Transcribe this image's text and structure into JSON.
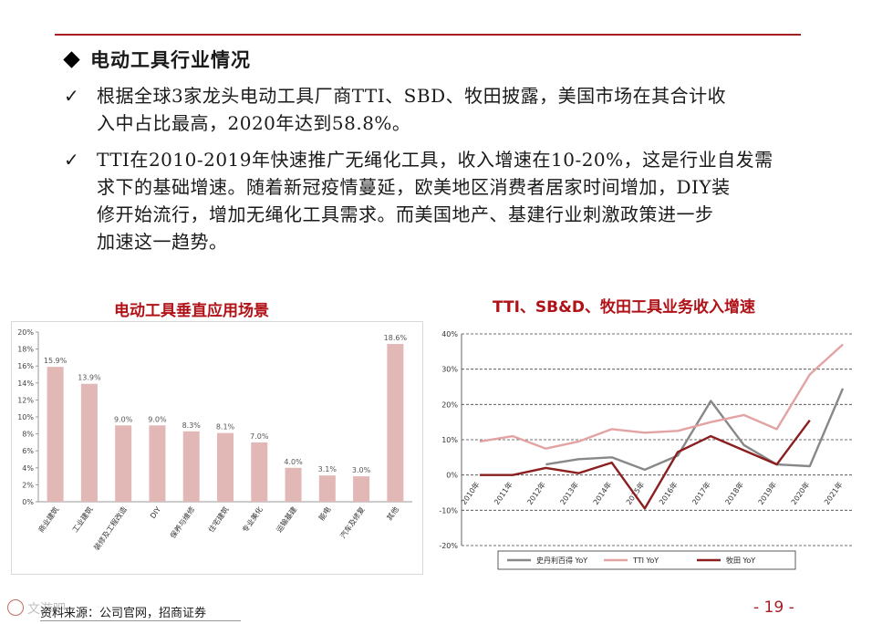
{
  "heading": "电动工具行业情况",
  "bullets": [
    {
      "check": "✓",
      "lines": [
        "根据全球3家龙头电动工具厂商TTI、SBD、牧田披露，美国市场在其合计收",
        "入中占比最高，2020年达到58.8%。"
      ]
    },
    {
      "check": "✓",
      "lines": [
        "TTI在2010-2019年快速推广无绳化工具，收入增速在10-20%，这是行业自发需",
        "求下的基础增速。随着新冠疫情蔓延，欧美地区消费者居家时间增加，DIY装",
        "修开始流行，增加无绳化工具需求。而美国地产、基建行业刺激政策进一步",
        "加速这一趋势。"
      ]
    }
  ],
  "footer": {
    "source": "资料来源：公司官网，招商证券",
    "page": "- 19 -",
    "watermark": "文游吧"
  },
  "colors": {
    "accent": "#a51e22",
    "bar": "#e2b8b6",
    "sbd": "#888888",
    "tti": "#e3a3a3",
    "makita": "#8b1e1e"
  },
  "chart_data": [
    {
      "type": "bar",
      "title": "电动工具垂直应用场景",
      "categories": [
        "商业建筑",
        "工业建筑",
        "装修及工程改造",
        "DIY",
        "保养与维修",
        "住宅建筑",
        "专业美化",
        "运输基建",
        "能电",
        "汽车及修复",
        "其他"
      ],
      "values": [
        15.9,
        13.9,
        9.0,
        9.0,
        8.3,
        8.1,
        7.0,
        4.0,
        3.1,
        3.0,
        18.6
      ],
      "value_labels": [
        "15.9%",
        "13.9%",
        "9.0%",
        "9.0%",
        "8.3%",
        "8.1%",
        "7.0%",
        "4.0%",
        "3.1%",
        "3.0%",
        "18.6%"
      ],
      "yticks": [
        "0%",
        "2%",
        "4%",
        "6%",
        "8%",
        "10%",
        "12%",
        "14%",
        "16%",
        "18%",
        "20%"
      ],
      "ylim": [
        0,
        20
      ],
      "grid": false
    },
    {
      "type": "line",
      "title": "TTI、SB&D、牧田工具业务收入增速",
      "x": [
        "2010年",
        "2011年",
        "2012年",
        "2013年",
        "2014年",
        "2015年",
        "2016年",
        "2017年",
        "2018年",
        "2019年",
        "2020年",
        "2021年"
      ],
      "yticks": [
        "-20%",
        "-10%",
        "0%",
        "10%",
        "20%",
        "30%",
        "40%"
      ],
      "ylim": [
        -20,
        40
      ],
      "grid": true,
      "legend_position": "bottom",
      "series": [
        {
          "name": "史丹利百得 YoY",
          "values": [
            null,
            null,
            3,
            4.5,
            5,
            1.5,
            5.5,
            21,
            8.5,
            3,
            2.5,
            24.5
          ]
        },
        {
          "name": "TTI YoY",
          "values": [
            9.5,
            11,
            7.5,
            9.5,
            13,
            12,
            12.5,
            15,
            17,
            13,
            28.5,
            37
          ]
        },
        {
          "name": "牧田 YoY",
          "values": [
            0,
            0,
            2,
            0.5,
            3.5,
            -9.5,
            6.5,
            11,
            7,
            3,
            15.5,
            null
          ]
        }
      ]
    }
  ]
}
